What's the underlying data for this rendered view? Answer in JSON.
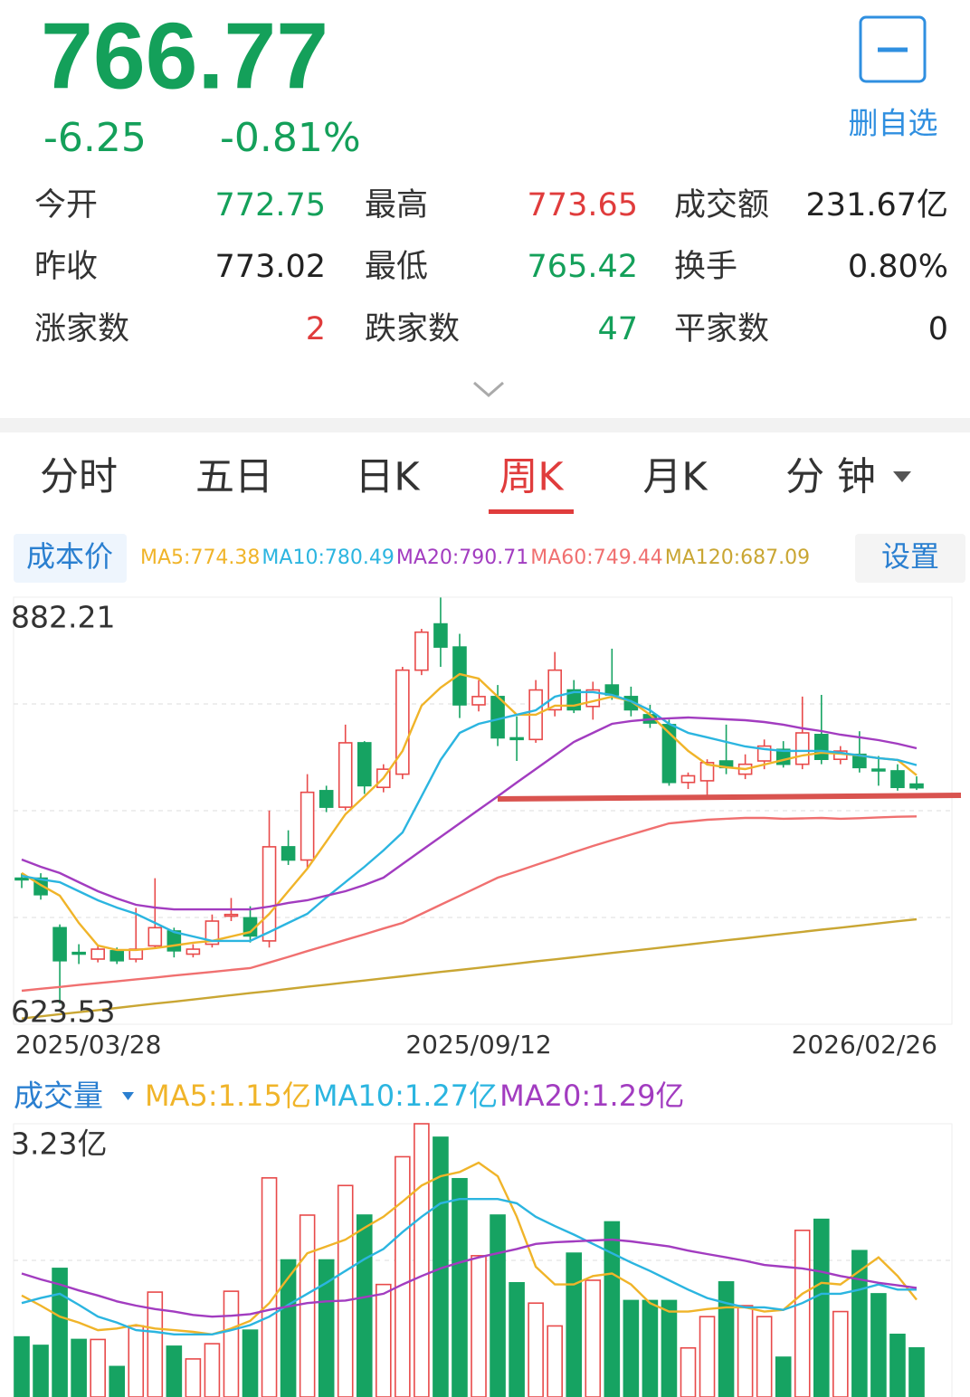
{
  "quote": {
    "price": "766.77",
    "change": "-6.25",
    "change_pct": "-0.81%",
    "color": "#14a05a",
    "watch_button": "删自选"
  },
  "stats": [
    [
      {
        "label": "今开",
        "value": "772.75",
        "color": "#14a05a"
      },
      {
        "label": "最高",
        "value": "773.65",
        "color": "#e03c3c"
      },
      {
        "label": "成交额",
        "value": "231.67亿",
        "color": "#222"
      }
    ],
    [
      {
        "label": "昨收",
        "value": "773.02",
        "color": "#222"
      },
      {
        "label": "最低",
        "value": "765.42",
        "color": "#14a05a"
      },
      {
        "label": "换手",
        "value": "0.80%",
        "color": "#222"
      }
    ],
    [
      {
        "label": "涨家数",
        "value": "2",
        "color": "#e03c3c"
      },
      {
        "label": "跌家数",
        "value": "47",
        "color": "#14a05a"
      },
      {
        "label": "平家数",
        "value": "0",
        "color": "#222"
      }
    ]
  ],
  "tabs": [
    "分时",
    "五日",
    "日K",
    "周K",
    "月K",
    "分 钟"
  ],
  "active_tab": 3,
  "cost_button": "成本价",
  "settings_button": "设置",
  "chart_data": [
    {
      "type": "candlestick",
      "categories": [
        "2025/03/28",
        null,
        null,
        null,
        null,
        null,
        null,
        null,
        null,
        null,
        null,
        null,
        null,
        null,
        null,
        null,
        null,
        null,
        null,
        null,
        null,
        null,
        null,
        null,
        "2025/09/12",
        null,
        null,
        null,
        null,
        null,
        null,
        null,
        null,
        null,
        null,
        null,
        null,
        null,
        null,
        null,
        null,
        null,
        null,
        null,
        null,
        null,
        null,
        "2026/02/26"
      ],
      "open": [
        712,
        712,
        682,
        667,
        663,
        668,
        663,
        671,
        680,
        666,
        672,
        689,
        688,
        674,
        731,
        723,
        765,
        755,
        794,
        767,
        775,
        838,
        866,
        852,
        817,
        822,
        797,
        796,
        814,
        826,
        816,
        829,
        822,
        811,
        805,
        770,
        771,
        783,
        775,
        783,
        790,
        781,
        799,
        784,
        787,
        778,
        777,
        769
      ],
      "high": [
        715,
        715,
        684,
        672,
        671,
        670,
        694,
        712,
        682,
        672,
        690,
        700,
        695,
        753,
        741,
        775,
        768,
        805,
        795,
        781,
        840,
        863,
        882,
        860,
        832,
        829,
        810,
        832,
        849,
        832,
        831,
        851,
        828,
        817,
        808,
        776,
        784,
        805,
        787,
        796,
        795,
        822,
        823,
        792,
        801,
        786,
        781,
        773.65
      ],
      "low": [
        706,
        699,
        636,
        660,
        661,
        660,
        661,
        669,
        664,
        664,
        670,
        686,
        673,
        670,
        720,
        718,
        752,
        753,
        763,
        764,
        772,
        835,
        840,
        809,
        813,
        792,
        783,
        794,
        810,
        812,
        808,
        820,
        810,
        803,
        768,
        766,
        762,
        775,
        772,
        778,
        779,
        778,
        781,
        781,
        776,
        768,
        765,
        765.42
      ],
      "close": [
        711,
        702,
        662,
        666,
        669,
        662,
        669,
        682,
        668,
        669,
        686,
        690,
        677,
        731,
        723,
        764,
        755,
        794,
        768,
        778,
        838,
        861,
        852,
        817,
        822,
        797,
        796,
        826,
        838,
        814,
        826,
        823,
        814,
        806,
        770,
        774,
        782,
        779,
        781,
        792,
        781,
        800,
        784,
        789,
        779,
        777,
        767,
        766.77
      ],
      "up_color": "#e84a4a",
      "down_color": "#16a362",
      "ylim": [
        623.53,
        882.21
      ],
      "yticks": [
        623.53,
        882.21
      ],
      "grid": true,
      "series": [
        {
          "name": "MA5:774.38",
          "color": "#f0b429",
          "values": [
            715.1,
            707.9,
            701.4,
            684.9,
            671.2,
            668.5,
            668.5,
            669.6,
            671.2,
            672.9,
            674.0,
            676.7,
            679.4,
            690.4,
            704.1,
            717.8,
            734.2,
            750.7,
            761.6,
            772.6,
            789.1,
            816.5,
            827.4,
            835.6,
            832.9,
            821.9,
            811.0,
            811.0,
            816.5,
            816.5,
            819.2,
            821.9,
            819.2,
            811.0,
            800.0,
            789.1,
            780.8,
            779.2,
            778.1,
            780.8,
            783.6,
            786.3,
            788.0,
            787.4,
            786.3,
            784.7,
            783.6,
            774.38
          ]
        },
        {
          "name": "MA10:780.49",
          "color": "#2bb5e0",
          "values": [
            713.4,
            711.2,
            709.6,
            704.1,
            698.6,
            694.2,
            690.4,
            684.9,
            679.4,
            676.7,
            674.0,
            674.0,
            674.0,
            679.4,
            684.9,
            690.4,
            700.3,
            709.6,
            718.9,
            728.8,
            739.7,
            761.6,
            783.6,
            800.0,
            805.5,
            808.2,
            811.0,
            813.7,
            821.9,
            824.7,
            824.7,
            823.0,
            819.2,
            813.7,
            805.5,
            800.0,
            797.3,
            794.5,
            791.8,
            790.2,
            789.1,
            789.1,
            789.1,
            788.0,
            786.3,
            784.7,
            783.6,
            780.49
          ]
        },
        {
          "name": "MA20:790.71",
          "color": "#a23cc0",
          "values": [
            723.3,
            718.9,
            715.1,
            709.6,
            704.1,
            699.7,
            695.9,
            694.2,
            693.1,
            693.1,
            693.1,
            693.1,
            693.1,
            694.8,
            697.0,
            698.6,
            701.4,
            704.1,
            707.9,
            712.3,
            720.6,
            728.8,
            737.0,
            745.2,
            753.4,
            761.6,
            769.9,
            778.1,
            786.3,
            794.5,
            800.0,
            805.5,
            807.2,
            808.2,
            808.8,
            809.3,
            808.8,
            808.2,
            807.7,
            806.6,
            805.0,
            802.8,
            801.1,
            798.9,
            797.3,
            795.6,
            793.4,
            790.71
          ]
        },
        {
          "name": "MA60:749.44",
          "color": "#f07070",
          "values": [
            643.8,
            645.0,
            646.1,
            647.3,
            648.4,
            649.5,
            650.7,
            651.8,
            653.0,
            654.1,
            655.2,
            656.4,
            657.5,
            660.9,
            664.3,
            667.8,
            671.2,
            674.6,
            678.0,
            681.5,
            684.9,
            690.4,
            695.9,
            701.3,
            706.8,
            712.3,
            716.1,
            720.0,
            723.8,
            727.7,
            731.5,
            735.0,
            738.4,
            741.8,
            745.2,
            746.3,
            747.4,
            748.0,
            748.5,
            748.5,
            748.0,
            748.2,
            748.5,
            748.0,
            748.3,
            748.8,
            749.2,
            749.44
          ]
        },
        {
          "name": "MA120:687.09",
          "color": "#c9a633",
          "values": [
            627.0,
            628.3,
            629.6,
            630.8,
            632.1,
            633.4,
            634.7,
            636.0,
            637.2,
            638.5,
            639.8,
            641.1,
            642.4,
            643.6,
            644.9,
            646.2,
            647.5,
            648.8,
            650.0,
            651.3,
            652.6,
            653.9,
            655.2,
            656.4,
            657.7,
            659.0,
            660.3,
            661.6,
            662.8,
            664.1,
            665.4,
            666.7,
            668.0,
            669.2,
            670.5,
            671.8,
            673.1,
            674.4,
            675.6,
            676.9,
            678.2,
            679.5,
            680.8,
            682.0,
            683.3,
            684.6,
            685.9,
            687.09
          ]
        }
      ]
    },
    {
      "type": "bar",
      "title": "成交量",
      "values": [
        0.71,
        0.61,
        1.52,
        0.68,
        0.68,
        0.36,
        0.84,
        1.24,
        0.6,
        0.45,
        0.63,
        1.25,
        0.79,
        2.59,
        1.62,
        2.15,
        1.62,
        2.5,
        2.15,
        1.33,
        2.84,
        3.23,
        3.07,
        2.58,
        1.67,
        2.15,
        1.35,
        1.11,
        0.84,
        1.7,
        1.38,
        2.07,
        1.14,
        1.14,
        1.14,
        0.58,
        0.95,
        1.36,
        1.08,
        0.95,
        0.47,
        1.97,
        2.1,
        1.01,
        1.73,
        1.22,
        0.74,
        0.58
      ],
      "ylim": [
        0,
        3.23
      ],
      "yticks": [
        {
          "value": 3.23,
          "label": "3.23亿"
        }
      ],
      "grid": true,
      "series": [
        {
          "name": "MA5:1.15亿",
          "color": "#f0b429",
          "values": [
            1.2,
            1.08,
            0.95,
            0.88,
            0.79,
            0.81,
            0.85,
            0.81,
            0.79,
            0.77,
            0.74,
            0.81,
            0.9,
            1.11,
            1.41,
            1.7,
            1.78,
            1.86,
            2.0,
            2.13,
            2.31,
            2.5,
            2.61,
            2.66,
            2.77,
            2.61,
            2.13,
            1.54,
            1.33,
            1.33,
            1.43,
            1.46,
            1.33,
            1.11,
            1.01,
            1.01,
            1.04,
            1.06,
            1.06,
            1.01,
            1.03,
            1.22,
            1.35,
            1.33,
            1.49,
            1.65,
            1.43,
            1.15
          ]
        },
        {
          "name": "MA10:1.27亿",
          "color": "#2bb5e0",
          "values": [
            1.11,
            1.17,
            1.22,
            1.09,
            0.95,
            0.88,
            0.79,
            0.77,
            0.74,
            0.74,
            0.74,
            0.79,
            0.85,
            0.95,
            1.09,
            1.22,
            1.35,
            1.49,
            1.63,
            1.75,
            1.95,
            2.13,
            2.29,
            2.34,
            2.34,
            2.34,
            2.29,
            2.13,
            2.02,
            1.92,
            1.81,
            1.7,
            1.59,
            1.49,
            1.38,
            1.27,
            1.17,
            1.11,
            1.06,
            1.06,
            1.03,
            1.11,
            1.22,
            1.22,
            1.27,
            1.33,
            1.27,
            1.27
          ]
        },
        {
          "name": "MA20:1.29亿",
          "color": "#a23cc0",
          "values": [
            1.46,
            1.39,
            1.33,
            1.26,
            1.2,
            1.13,
            1.08,
            1.04,
            1.01,
            0.97,
            0.95,
            0.96,
            0.98,
            1.03,
            1.07,
            1.11,
            1.13,
            1.14,
            1.18,
            1.22,
            1.33,
            1.43,
            1.52,
            1.59,
            1.65,
            1.7,
            1.75,
            1.81,
            1.83,
            1.84,
            1.85,
            1.86,
            1.84,
            1.81,
            1.78,
            1.73,
            1.69,
            1.65,
            1.61,
            1.56,
            1.54,
            1.52,
            1.48,
            1.43,
            1.39,
            1.35,
            1.32,
            1.29
          ]
        }
      ]
    }
  ]
}
